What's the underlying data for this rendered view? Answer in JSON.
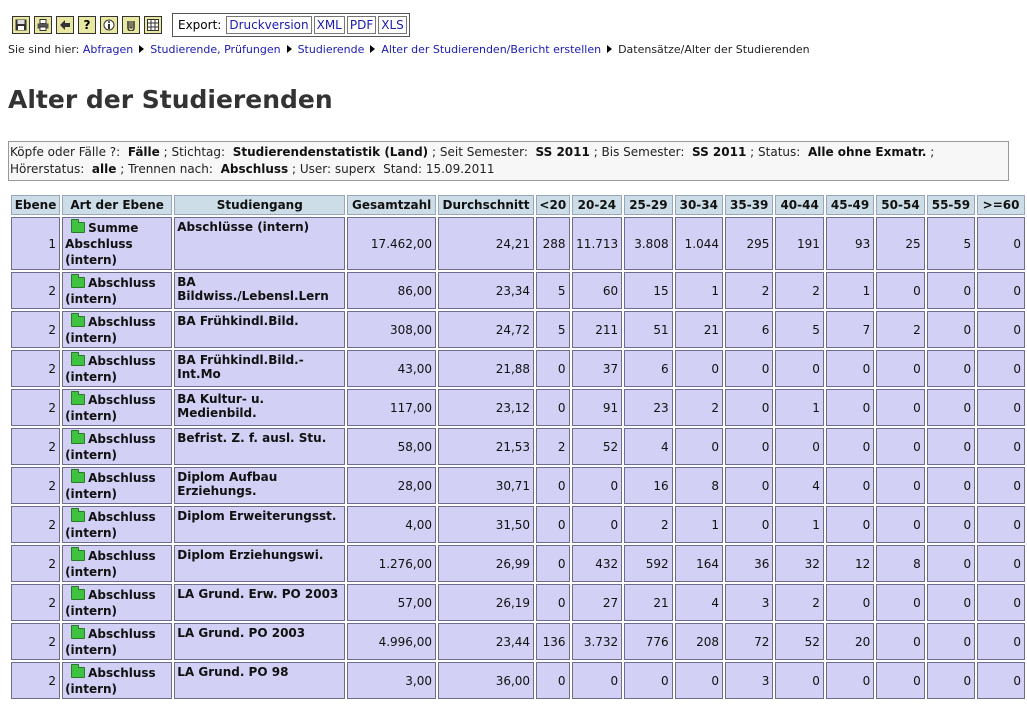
{
  "toolbar": {
    "icons": [
      "save-icon",
      "print-icon",
      "back-arrow-icon",
      "help-icon",
      "info-icon",
      "attachment-icon",
      "grid-icon"
    ],
    "export_label": "Export:",
    "export_links": [
      "Druckversion",
      "XML",
      "PDF",
      "XLS"
    ]
  },
  "breadcrumb": {
    "prefix": "Sie sind hier:",
    "items": [
      "Abfragen",
      "Studierende, Prüfungen",
      "Studierende",
      "Alter der Studierenden/Bericht erstellen"
    ],
    "current": "Datensätze/Alter der Studierenden"
  },
  "page_title": "Alter der Studierenden",
  "filters": {
    "k_label": "Köpfe oder Fälle ?:",
    "k_value": "Fälle",
    "stichtag_label": "; Stichtag:",
    "stichtag_value": "Studierendenstatistik (Land)",
    "seit_label": "; Seit Semester:",
    "seit_value": "SS 2011",
    "bis_label": "; Bis Semester:",
    "bis_value": "SS 2011",
    "status_label": "; Status:",
    "status_value": "Alle ohne Exmatr.",
    "hoerer_label": "; Hörerstatus:",
    "hoerer_value": "alle",
    "trennen_label": "; Trennen nach:",
    "trennen_value": "Abschluss",
    "user_text": "; User: superx",
    "stand_text": "Stand: 15.09.2011"
  },
  "table": {
    "headers": [
      "Ebene",
      "Art der Ebene",
      "Studiengang",
      "Gesamtzahl",
      "Durchschnitt",
      "<20",
      "20-24",
      "25-29",
      "30-34",
      "35-39",
      "40-44",
      "45-49",
      "50-54",
      "55-59",
      ">=60"
    ],
    "rows": [
      {
        "ebene": "1",
        "art": "Summe Abschluss (intern)",
        "studiengang": "Abschlüsse (intern)",
        "gesamt": "17.462,00",
        "avg": "24,21",
        "ages": [
          "288",
          "11.713",
          "3.808",
          "1.044",
          "295",
          "191",
          "93",
          "25",
          "5",
          "0"
        ]
      },
      {
        "ebene": "2",
        "art": "Abschluss (intern)",
        "studiengang": "BA Bildwiss./Lebensl.Lern",
        "gesamt": "86,00",
        "avg": "23,34",
        "ages": [
          "5",
          "60",
          "15",
          "1",
          "2",
          "2",
          "1",
          "0",
          "0",
          "0"
        ]
      },
      {
        "ebene": "2",
        "art": "Abschluss (intern)",
        "studiengang": "BA Frühkindl.Bild.",
        "gesamt": "308,00",
        "avg": "24,72",
        "ages": [
          "5",
          "211",
          "51",
          "21",
          "6",
          "5",
          "7",
          "2",
          "0",
          "0"
        ]
      },
      {
        "ebene": "2",
        "art": "Abschluss (intern)",
        "studiengang": "BA Frühkindl.Bild.-Int.Mo",
        "gesamt": "43,00",
        "avg": "21,88",
        "ages": [
          "0",
          "37",
          "6",
          "0",
          "0",
          "0",
          "0",
          "0",
          "0",
          "0"
        ]
      },
      {
        "ebene": "2",
        "art": "Abschluss (intern)",
        "studiengang": "BA Kultur- u. Medienbild.",
        "gesamt": "117,00",
        "avg": "23,12",
        "ages": [
          "0",
          "91",
          "23",
          "2",
          "0",
          "1",
          "0",
          "0",
          "0",
          "0"
        ]
      },
      {
        "ebene": "2",
        "art": "Abschluss (intern)",
        "studiengang": "Befrist. Z. f. ausl. Stu.",
        "gesamt": "58,00",
        "avg": "21,53",
        "ages": [
          "2",
          "52",
          "4",
          "0",
          "0",
          "0",
          "0",
          "0",
          "0",
          "0"
        ]
      },
      {
        "ebene": "2",
        "art": "Abschluss (intern)",
        "studiengang": "Diplom Aufbau Erziehungs.",
        "gesamt": "28,00",
        "avg": "30,71",
        "ages": [
          "0",
          "0",
          "16",
          "8",
          "0",
          "4",
          "0",
          "0",
          "0",
          "0"
        ]
      },
      {
        "ebene": "2",
        "art": "Abschluss (intern)",
        "studiengang": "Diplom Erweiterungsst.",
        "gesamt": "4,00",
        "avg": "31,50",
        "ages": [
          "0",
          "0",
          "2",
          "1",
          "0",
          "1",
          "0",
          "0",
          "0",
          "0"
        ]
      },
      {
        "ebene": "2",
        "art": "Abschluss (intern)",
        "studiengang": "Diplom Erziehungswi.",
        "gesamt": "1.276,00",
        "avg": "26,99",
        "ages": [
          "0",
          "432",
          "592",
          "164",
          "36",
          "32",
          "12",
          "8",
          "0",
          "0"
        ]
      },
      {
        "ebene": "2",
        "art": "Abschluss (intern)",
        "studiengang": "LA Grund. Erw. PO 2003",
        "gesamt": "57,00",
        "avg": "26,19",
        "ages": [
          "0",
          "27",
          "21",
          "4",
          "3",
          "2",
          "0",
          "0",
          "0",
          "0"
        ]
      },
      {
        "ebene": "2",
        "art": "Abschluss (intern)",
        "studiengang": "LA Grund. PO 2003",
        "gesamt": "4.996,00",
        "avg": "23,44",
        "ages": [
          "136",
          "3.732",
          "776",
          "208",
          "72",
          "52",
          "20",
          "0",
          "0",
          "0"
        ]
      },
      {
        "ebene": "2",
        "art": "Abschluss (intern)",
        "studiengang": "LA Grund. PO 98",
        "gesamt": "3,00",
        "avg": "36,00",
        "ages": [
          "0",
          "0",
          "0",
          "0",
          "3",
          "0",
          "0",
          "0",
          "0",
          "0"
        ]
      }
    ]
  }
}
